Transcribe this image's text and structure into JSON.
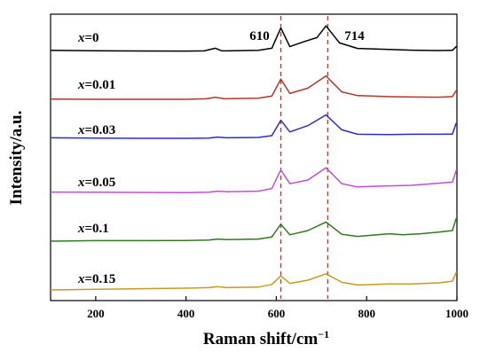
{
  "chart_data": {
    "type": "line",
    "xlabel": "Raman shift/cm",
    "xlabel_sup": "−1",
    "ylabel": "Intensity/a.u.",
    "xlim": [
      100,
      1000
    ],
    "x_ticks": [
      200,
      400,
      600,
      800,
      1000
    ],
    "x_tick_labels": [
      "200",
      "400",
      "600",
      "800",
      "1000"
    ],
    "y_ticks_shown": false,
    "grid": false,
    "peak_markers": [
      {
        "x": 610,
        "label": "610"
      },
      {
        "x": 714,
        "label": "714"
      }
    ],
    "series": [
      {
        "label_var": "x",
        "label_value": "=0",
        "color": "#000000",
        "points": [
          [
            100,
            0.1
          ],
          [
            200,
            0.06
          ],
          [
            300,
            0.04
          ],
          [
            400,
            0.03
          ],
          [
            440,
            0.05
          ],
          [
            465,
            0.3
          ],
          [
            480,
            0.05
          ],
          [
            560,
            0.1
          ],
          [
            590,
            0.3
          ],
          [
            610,
            2.2
          ],
          [
            630,
            0.45
          ],
          [
            660,
            0.9
          ],
          [
            690,
            1.3
          ],
          [
            710,
            2.4
          ],
          [
            740,
            0.8
          ],
          [
            780,
            0.28
          ],
          [
            850,
            0.18
          ],
          [
            900,
            0.12
          ],
          [
            960,
            0.08
          ],
          [
            990,
            0.1
          ],
          [
            998,
            0.45
          ],
          [
            1000,
            0.45
          ]
        ]
      },
      {
        "label_var": "x",
        "label_value": "=0.01",
        "color": "#b0352b",
        "points": [
          [
            100,
            0.02
          ],
          [
            200,
            0.0
          ],
          [
            300,
            0.0
          ],
          [
            400,
            0.0
          ],
          [
            445,
            0.05
          ],
          [
            465,
            0.18
          ],
          [
            485,
            0.05
          ],
          [
            560,
            0.1
          ],
          [
            590,
            0.3
          ],
          [
            610,
            1.9
          ],
          [
            630,
            0.55
          ],
          [
            670,
            1.05
          ],
          [
            710,
            2.2
          ],
          [
            745,
            0.7
          ],
          [
            780,
            0.35
          ],
          [
            850,
            0.25
          ],
          [
            900,
            0.22
          ],
          [
            960,
            0.2
          ],
          [
            990,
            0.25
          ],
          [
            998,
            0.8
          ],
          [
            1000,
            0.8
          ]
        ]
      },
      {
        "label_var": "x",
        "label_value": "=0.03",
        "color": "#2b2bd6",
        "points": [
          [
            100,
            0.05
          ],
          [
            200,
            0.02
          ],
          [
            300,
            0.0
          ],
          [
            400,
            0.0
          ],
          [
            450,
            0.02
          ],
          [
            470,
            0.12
          ],
          [
            490,
            0.05
          ],
          [
            560,
            0.08
          ],
          [
            590,
            0.25
          ],
          [
            610,
            1.7
          ],
          [
            630,
            0.6
          ],
          [
            670,
            1.2
          ],
          [
            710,
            2.2
          ],
          [
            745,
            0.8
          ],
          [
            780,
            0.38
          ],
          [
            850,
            0.35
          ],
          [
            900,
            0.38
          ],
          [
            960,
            0.38
          ],
          [
            990,
            0.4
          ],
          [
            998,
            1.4
          ],
          [
            1000,
            1.4
          ]
        ]
      },
      {
        "label_var": "x",
        "label_value": "=0.05",
        "color": "#c04dd9",
        "points": [
          [
            100,
            0.12
          ],
          [
            200,
            0.1
          ],
          [
            300,
            0.08
          ],
          [
            400,
            0.07
          ],
          [
            450,
            0.1
          ],
          [
            470,
            0.2
          ],
          [
            490,
            0.15
          ],
          [
            560,
            0.2
          ],
          [
            590,
            0.45
          ],
          [
            610,
            2.2
          ],
          [
            630,
            0.9
          ],
          [
            670,
            1.25
          ],
          [
            710,
            2.4
          ],
          [
            745,
            0.9
          ],
          [
            780,
            0.6
          ],
          [
            850,
            0.7
          ],
          [
            900,
            0.75
          ],
          [
            960,
            0.95
          ],
          [
            990,
            1.05
          ],
          [
            998,
            2.1
          ],
          [
            1000,
            2.1
          ]
        ]
      },
      {
        "label_var": "x",
        "label_value": "=0.1",
        "color": "#2f7a1c",
        "points": [
          [
            100,
            0.0
          ],
          [
            200,
            0.05
          ],
          [
            300,
            0.05
          ],
          [
            400,
            0.06
          ],
          [
            450,
            0.1
          ],
          [
            470,
            0.2
          ],
          [
            490,
            0.15
          ],
          [
            560,
            0.2
          ],
          [
            590,
            0.4
          ],
          [
            610,
            1.6
          ],
          [
            630,
            0.6
          ],
          [
            670,
            1.0
          ],
          [
            710,
            1.8
          ],
          [
            745,
            0.65
          ],
          [
            780,
            0.45
          ],
          [
            850,
            0.7
          ],
          [
            880,
            0.6
          ],
          [
            920,
            0.7
          ],
          [
            960,
            0.85
          ],
          [
            990,
            1.0
          ],
          [
            998,
            2.1
          ],
          [
            1000,
            2.1
          ]
        ]
      },
      {
        "label_var": "x",
        "label_value": "=0.15",
        "color": "#c99a1c",
        "points": [
          [
            100,
            0.08
          ],
          [
            200,
            0.15
          ],
          [
            300,
            0.2
          ],
          [
            400,
            0.25
          ],
          [
            450,
            0.3
          ],
          [
            470,
            0.4
          ],
          [
            490,
            0.3
          ],
          [
            560,
            0.35
          ],
          [
            590,
            0.6
          ],
          [
            610,
            1.4
          ],
          [
            630,
            0.7
          ],
          [
            670,
            1.0
          ],
          [
            710,
            1.6
          ],
          [
            745,
            0.8
          ],
          [
            780,
            0.55
          ],
          [
            850,
            0.65
          ],
          [
            900,
            0.65
          ],
          [
            960,
            0.75
          ],
          [
            990,
            0.9
          ],
          [
            998,
            1.7
          ],
          [
            1000,
            1.7
          ]
        ]
      }
    ]
  }
}
